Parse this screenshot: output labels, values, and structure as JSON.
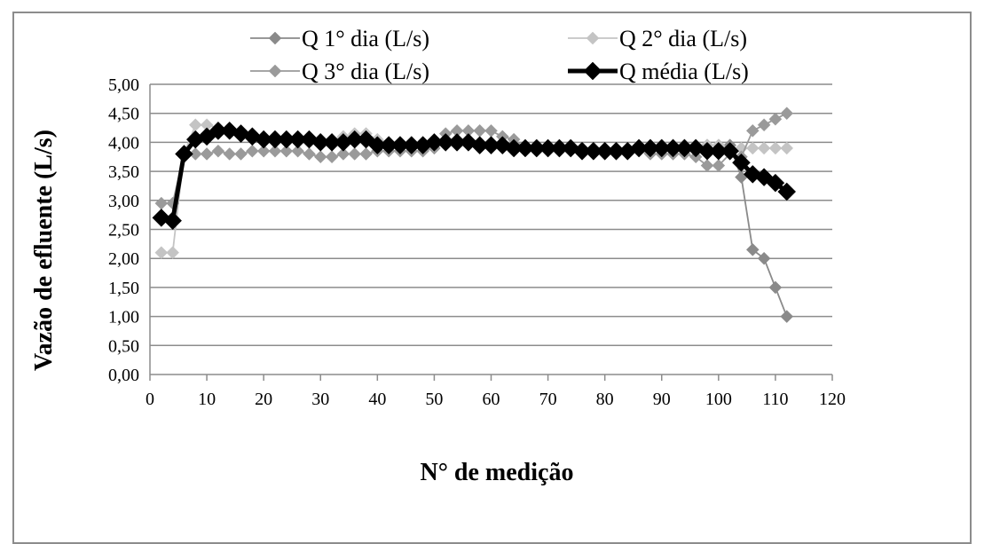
{
  "chart_data": {
    "type": "line",
    "xlabel": "N° de medição",
    "ylabel": "Vazão de efluente (L/s)",
    "xlim": [
      0,
      120
    ],
    "ylim": [
      0,
      5
    ],
    "x_ticks": [
      "0",
      "10",
      "20",
      "30",
      "40",
      "50",
      "60",
      "70",
      "80",
      "90",
      "100",
      "110",
      "120"
    ],
    "y_ticks": [
      "0,00",
      "0,50",
      "1,00",
      "1,50",
      "2,00",
      "2,50",
      "3,00",
      "3,50",
      "4,00",
      "4,50",
      "5,00"
    ],
    "grid": "horizontal",
    "legend_position": "top",
    "series": [
      {
        "name": "Q 1° dia (L/s)",
        "color": "#8a8a8a",
        "marker": "diamond",
        "x": [
          2,
          4,
          6,
          8,
          10,
          12,
          14,
          16,
          18,
          20,
          22,
          24,
          26,
          28,
          30,
          32,
          34,
          36,
          38,
          40,
          42,
          44,
          46,
          48,
          50,
          52,
          54,
          56,
          58,
          60,
          62,
          64,
          66,
          68,
          70,
          72,
          74,
          76,
          78,
          80,
          82,
          84,
          86,
          88,
          90,
          92,
          94,
          96,
          98,
          100,
          102,
          104,
          106,
          108,
          110,
          112
        ],
        "y": [
          2.7,
          2.7,
          3.8,
          4.1,
          4.1,
          4.15,
          4.2,
          4.2,
          4.15,
          4.1,
          4.1,
          4.1,
          4.1,
          4.05,
          4.05,
          4.05,
          4.05,
          4.05,
          4.05,
          4.0,
          4.0,
          4.0,
          4.0,
          4.0,
          4.0,
          4.0,
          4.0,
          4.0,
          3.95,
          3.95,
          3.95,
          3.95,
          3.9,
          3.9,
          3.9,
          3.9,
          3.9,
          3.9,
          3.85,
          3.85,
          3.85,
          3.85,
          3.9,
          3.95,
          3.95,
          3.95,
          3.95,
          3.95,
          3.95,
          3.95,
          3.95,
          3.4,
          2.15,
          2.0,
          1.5,
          1.0
        ]
      },
      {
        "name": "Q 2° dia (L/s)",
        "color": "#c4c4c4",
        "marker": "diamond",
        "x": [
          2,
          4,
          6,
          8,
          10,
          12,
          14,
          16,
          18,
          20,
          22,
          24,
          26,
          28,
          30,
          32,
          34,
          36,
          38,
          40,
          42,
          44,
          46,
          48,
          50,
          52,
          54,
          56,
          58,
          60,
          62,
          64,
          66,
          68,
          70,
          72,
          74,
          76,
          78,
          80,
          82,
          84,
          86,
          88,
          90,
          92,
          94,
          96,
          98,
          100,
          102,
          104,
          106,
          108,
          110,
          112
        ],
        "y": [
          2.1,
          2.1,
          3.8,
          4.3,
          4.3,
          4.25,
          4.2,
          4.15,
          4.1,
          4.1,
          4.1,
          4.1,
          4.1,
          4.1,
          4.05,
          4.05,
          4.1,
          4.15,
          4.15,
          4.05,
          4.0,
          4.0,
          4.0,
          4.0,
          4.0,
          4.0,
          4.0,
          4.0,
          3.95,
          3.9,
          3.9,
          3.85,
          3.9,
          3.9,
          3.9,
          3.85,
          3.85,
          3.85,
          3.85,
          3.85,
          3.85,
          3.85,
          3.95,
          3.95,
          3.95,
          3.95,
          3.95,
          3.95,
          3.95,
          3.95,
          3.9,
          3.9,
          3.9,
          3.9,
          3.9,
          3.9
        ]
      },
      {
        "name": "Q 3° dia (L/s)",
        "color": "#9a9a9a",
        "marker": "diamond",
        "x": [
          2,
          4,
          6,
          8,
          10,
          12,
          14,
          16,
          18,
          20,
          22,
          24,
          26,
          28,
          30,
          32,
          34,
          36,
          38,
          40,
          42,
          44,
          46,
          48,
          50,
          52,
          54,
          56,
          58,
          60,
          62,
          64,
          66,
          68,
          70,
          72,
          74,
          76,
          78,
          80,
          82,
          84,
          86,
          88,
          90,
          92,
          94,
          96,
          98,
          100,
          102,
          104,
          106,
          108,
          110,
          112
        ],
        "y": [
          2.95,
          2.95,
          3.8,
          3.8,
          3.8,
          3.85,
          3.8,
          3.8,
          3.85,
          3.85,
          3.85,
          3.85,
          3.85,
          3.8,
          3.75,
          3.75,
          3.8,
          3.8,
          3.8,
          3.85,
          3.85,
          3.85,
          3.85,
          3.85,
          3.9,
          4.15,
          4.2,
          4.2,
          4.2,
          4.2,
          4.1,
          4.05,
          3.9,
          3.85,
          3.85,
          3.85,
          3.85,
          3.8,
          3.8,
          3.8,
          3.8,
          3.8,
          3.85,
          3.8,
          3.8,
          3.8,
          3.8,
          3.75,
          3.6,
          3.6,
          3.8,
          3.75,
          4.2,
          4.3,
          4.4,
          4.5
        ]
      },
      {
        "name": "Q média (L/s)",
        "color": "#000000",
        "marker": "diamond",
        "x": [
          2,
          4,
          6,
          8,
          10,
          12,
          14,
          16,
          18,
          20,
          22,
          24,
          26,
          28,
          30,
          32,
          34,
          36,
          38,
          40,
          42,
          44,
          46,
          48,
          50,
          52,
          54,
          56,
          58,
          60,
          62,
          64,
          66,
          68,
          70,
          72,
          74,
          76,
          78,
          80,
          82,
          84,
          86,
          88,
          90,
          92,
          94,
          96,
          98,
          100,
          102,
          104,
          106,
          108,
          110,
          112
        ],
        "y": [
          2.7,
          2.65,
          3.8,
          4.05,
          4.1,
          4.2,
          4.2,
          4.15,
          4.1,
          4.05,
          4.05,
          4.05,
          4.05,
          4.05,
          4.0,
          4.0,
          4.0,
          4.05,
          4.05,
          3.95,
          3.95,
          3.95,
          3.95,
          3.95,
          4.0,
          4.0,
          4.0,
          4.0,
          3.95,
          3.95,
          3.95,
          3.9,
          3.9,
          3.9,
          3.9,
          3.9,
          3.9,
          3.85,
          3.85,
          3.85,
          3.85,
          3.85,
          3.9,
          3.9,
          3.9,
          3.9,
          3.9,
          3.9,
          3.85,
          3.85,
          3.85,
          3.65,
          3.45,
          3.4,
          3.3,
          3.15
        ]
      }
    ]
  }
}
